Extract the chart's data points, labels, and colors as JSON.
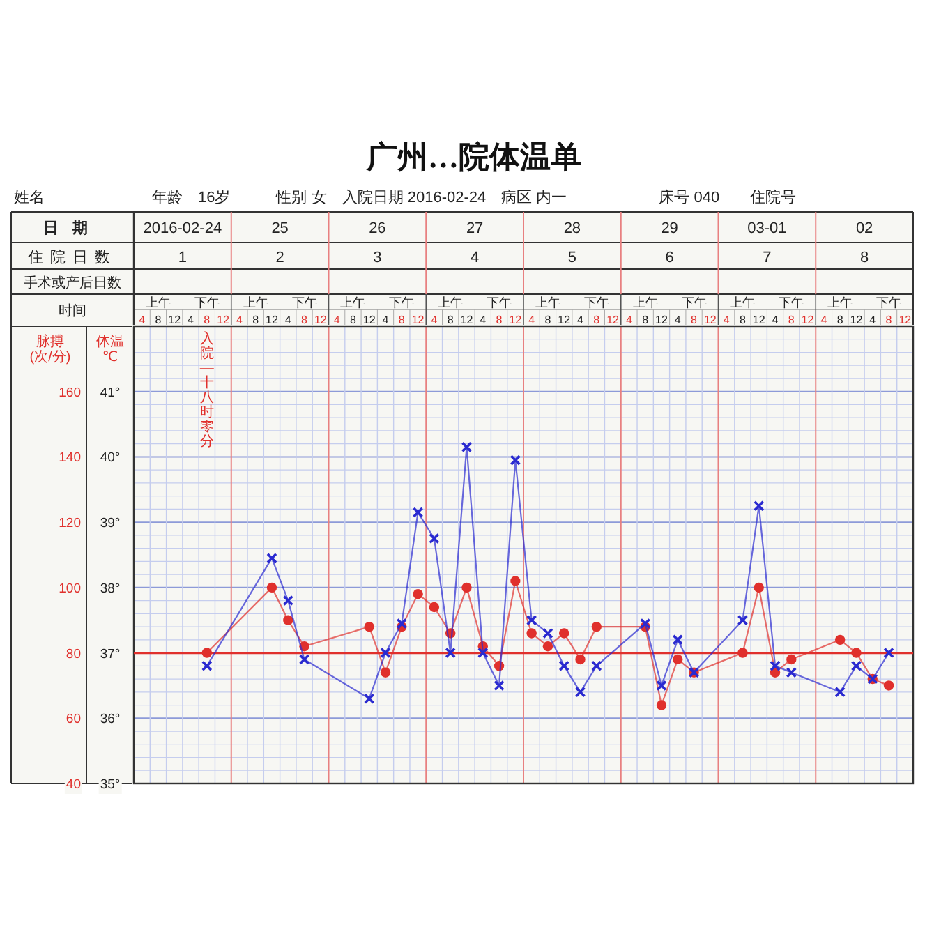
{
  "chart_data": {
    "type": "line",
    "title": "广州…院体温单",
    "subtitle": "姓名　　　　　　　年龄　16岁　　　性别 女　入院日期 2016-02-24　病区 内一　　　　　　床号 040　　住院号",
    "categories": [
      "4",
      "8",
      "12",
      "4",
      "8",
      "12",
      "4",
      "8",
      "12",
      "4",
      "8",
      "12",
      "4",
      "8",
      "12",
      "4",
      "8",
      "12",
      "4",
      "8",
      "12",
      "4",
      "8",
      "12",
      "4",
      "8",
      "12",
      "4",
      "8",
      "12",
      "4",
      "8",
      "12",
      "4",
      "8",
      "12",
      "4",
      "8",
      "12",
      "4",
      "8",
      "12",
      "4",
      "8",
      "12",
      "4",
      "8",
      "12"
    ],
    "xlabel": "时间",
    "ylim": [
      40,
      180
    ],
    "yticks": [
      40,
      {
        "value": 44,
        "label": null
      },
      {
        "value": 48,
        "label": null
      },
      {
        "value": 52,
        "label": null
      },
      {
        "value": 56,
        "label": null
      },
      60,
      {
        "value": 64,
        "label": null
      },
      {
        "value": 68,
        "label": null
      },
      {
        "value": 72,
        "label": null
      },
      {
        "value": 76,
        "label": null
      },
      80,
      {
        "value": 84,
        "label": null
      },
      {
        "value": 88,
        "label": null
      },
      {
        "value": 92,
        "label": null
      },
      {
        "value": 96,
        "label": null
      },
      100,
      {
        "value": 104,
        "label": null
      },
      {
        "value": 108,
        "label": null
      },
      {
        "value": 112,
        "label": null
      },
      {
        "value": 116,
        "label": null
      },
      120,
      {
        "value": 124,
        "label": null
      },
      {
        "value": 128,
        "label": null
      },
      {
        "value": 132,
        "label": null
      },
      {
        "value": 136,
        "label": null
      },
      140,
      {
        "value": 144,
        "label": null
      },
      {
        "value": 148,
        "label": null
      },
      {
        "value": 152,
        "label": null
      },
      {
        "value": 156,
        "label": null
      },
      160,
      {
        "value": 164,
        "label": null
      },
      {
        "value": 168,
        "label": null
      },
      {
        "value": 172,
        "label": null
      },
      {
        "value": 176,
        "label": null
      }
    ],
    "ylabel": "脉搏\n(次/分)",
    "y2lim": [
      35,
      42
    ],
    "y2ticks": [
      {
        "value": 35,
        "label": "35°"
      },
      {
        "value": 36,
        "label": "36°"
      },
      {
        "value": 37,
        "label": "37°"
      },
      {
        "value": 38,
        "label": "38°"
      },
      {
        "value": 39,
        "label": "39°"
      },
      {
        "value": 40,
        "label": "40°"
      },
      {
        "value": 41,
        "label": "41°"
      }
    ],
    "y2label": "体温\n℃",
    "series": [
      {
        "color": "#e0302c",
        "marker": "circle",
        "axis": "y2",
        "values": [
          null,
          null,
          null,
          null,
          37.0,
          null,
          null,
          null,
          38.0,
          37.5,
          37.1,
          null,
          null,
          null,
          37.4,
          36.7,
          37.4,
          37.9,
          37.7,
          37.3,
          38.0,
          37.1,
          36.8,
          38.1,
          37.3,
          37.1,
          37.3,
          36.9,
          37.4,
          null,
          null,
          37.4,
          36.2,
          36.9,
          36.7,
          null,
          null,
          37.0,
          38.0,
          36.7,
          36.9,
          null,
          null,
          37.2,
          37.0,
          36.6,
          36.5,
          null
        ]
      },
      {
        "color": "#2a2ad0",
        "marker": "cross",
        "values": [
          null,
          null,
          null,
          null,
          76,
          null,
          null,
          null,
          109,
          96,
          78,
          null,
          null,
          null,
          66,
          80,
          89,
          123,
          115,
          80,
          143,
          80,
          70,
          139,
          90,
          86,
          76,
          68,
          76,
          null,
          null,
          89,
          70,
          84,
          74,
          null,
          null,
          90,
          125,
          76,
          74,
          null,
          null,
          68,
          76,
          72,
          80,
          null
        ]
      }
    ],
    "ref_lines": [
      {
        "axis": "y2",
        "value": 37,
        "color": "#e0302c"
      }
    ],
    "annotations": [
      "日期",
      "2016-02-24",
      "25",
      "26",
      "27",
      "28",
      "29",
      "03-01",
      "02",
      "住院日数",
      "1",
      "2",
      "3",
      "4",
      "5",
      "6",
      "7",
      "8",
      "手术或产后日数",
      "上午",
      "下午",
      "上午",
      "下午",
      "上午",
      "下午",
      "上午",
      "下午",
      "上午",
      "下午",
      "上午",
      "下午",
      "上午",
      "下午",
      "上午",
      "下午",
      "入院—十八时零分"
    ],
    "grid": true
  }
}
